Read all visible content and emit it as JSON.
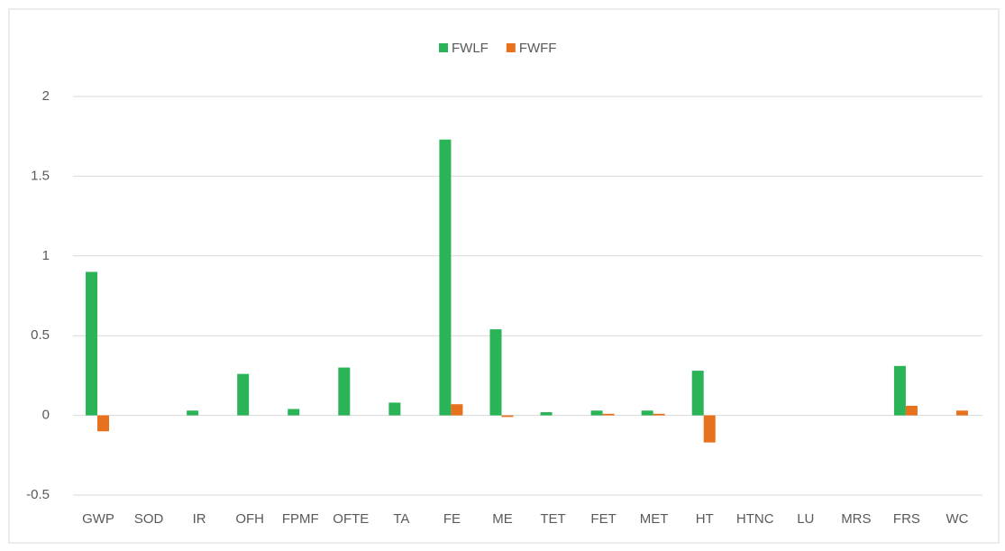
{
  "chart_data": {
    "type": "bar",
    "categories": [
      "GWP",
      "SOD",
      "IR",
      "OFH",
      "FPMF",
      "OFTE",
      "TA",
      "FE",
      "ME",
      "TET",
      "FET",
      "MET",
      "HT",
      "HTNC",
      "LU",
      "MRS",
      "FRS",
      "WC"
    ],
    "series": [
      {
        "name": "FWLF",
        "color": "#2bb457",
        "values": [
          0.9,
          0,
          0.03,
          0.26,
          0.04,
          0.3,
          0.08,
          1.73,
          0.54,
          0.02,
          0.03,
          0.03,
          0.28,
          0,
          0,
          0,
          0.31,
          0
        ]
      },
      {
        "name": "FWFF",
        "color": "#e8711e",
        "values": [
          -0.1,
          0,
          0,
          0,
          0,
          0,
          0,
          0.07,
          -0.01,
          0,
          0.01,
          0.01,
          -0.17,
          0,
          0,
          0,
          0.06,
          0.03
        ]
      }
    ],
    "ylim": [
      -0.5,
      2
    ],
    "yticks": [
      -0.5,
      0,
      0.5,
      1,
      1.5,
      2
    ],
    "grid": true,
    "legend": "top"
  }
}
